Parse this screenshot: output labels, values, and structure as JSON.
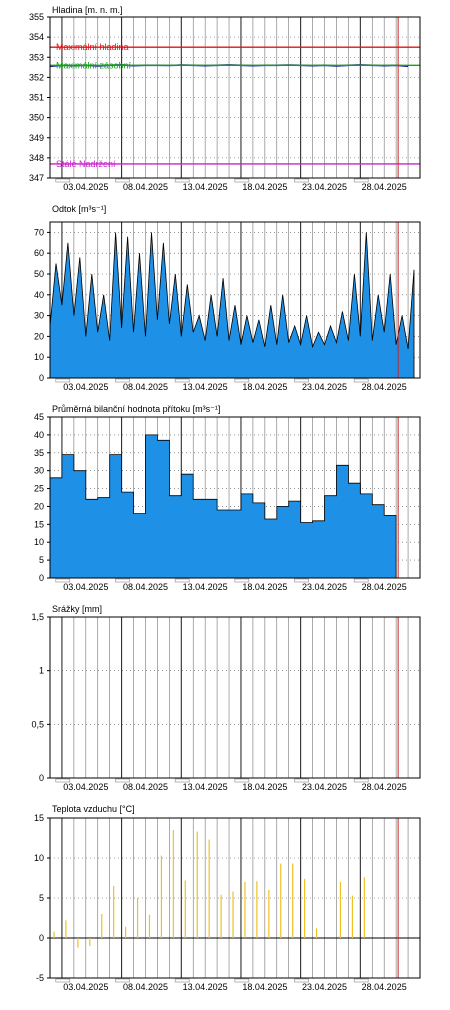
{
  "colors": {
    "frame": "#000000",
    "grid": "#000000",
    "fill_blue": "#1e90e6",
    "level_line": "#1f1f99",
    "max_level": "#e01515",
    "max_storage": "#14a014",
    "dead_storage": "#cc22cc",
    "precip": "#e0c000",
    "temp": "#f0c020",
    "today_marker": "#cc2222"
  },
  "x_axis": {
    "start": "2025-03-31",
    "end": "2025-05-01",
    "labels": [
      "03.04.2025",
      "08.04.2025",
      "13.04.2025",
      "18.04.2025",
      "23.04.2025",
      "28.04.2025"
    ],
    "label_dates": [
      "2025-04-03",
      "2025-04-08",
      "2025-04-13",
      "2025-04-18",
      "2025-04-23",
      "2025-04-28"
    ],
    "today_marker": "2025-04-29"
  },
  "chart_data": [
    {
      "id": "hladina",
      "type": "line",
      "title": "Hladina [m. n. m.]",
      "ylim": [
        347,
        355
      ],
      "yticks": [
        "347",
        "348",
        "349",
        "350",
        "351",
        "352",
        "353",
        "354",
        "355"
      ],
      "ytick_values": [
        347,
        348,
        349,
        350,
        351,
        352,
        353,
        354,
        355
      ],
      "reference_lines": [
        {
          "label": "Maximální hladina",
          "value": 353.5,
          "color_key": "max_level"
        },
        {
          "label": "Maximální zásobní",
          "value": 352.6,
          "color_key": "max_storage"
        },
        {
          "label": "Stálé Nadržení",
          "value": 347.7,
          "color_key": "dead_storage"
        }
      ],
      "series": [
        {
          "values_daily": [
            352.55,
            352.6,
            352.58,
            352.6,
            352.57,
            352.6,
            352.62,
            352.58,
            352.6,
            352.6,
            352.59,
            352.61,
            352.6,
            352.58,
            352.6,
            352.62,
            352.6,
            352.58,
            352.6,
            352.6,
            352.61,
            352.6,
            352.58,
            352.6,
            352.57,
            352.6,
            352.62,
            352.6,
            352.58,
            352.6,
            352.55
          ]
        }
      ]
    },
    {
      "id": "odtok",
      "type": "area",
      "title": "Odtok [m³s⁻¹]",
      "ylim": [
        0,
        75
      ],
      "yticks": [
        "0",
        "10",
        "20",
        "30",
        "40",
        "50",
        "60",
        "70"
      ],
      "ytick_values": [
        0,
        10,
        20,
        30,
        40,
        50,
        60,
        70
      ],
      "series": [
        {
          "x": [
            0,
            0.5,
            1,
            1.5,
            2,
            2.5,
            3,
            3.5,
            4,
            4.5,
            5,
            5.5,
            6,
            6.5,
            7,
            7.5,
            8,
            8.5,
            9,
            9.5,
            10,
            10.5,
            11,
            11.5,
            12,
            12.5,
            13,
            13.5,
            14,
            14.5,
            15,
            15.5,
            16,
            16.5,
            17,
            17.5,
            18,
            18.5,
            19,
            19.5,
            20,
            20.5,
            21,
            21.5,
            22,
            22.5,
            23,
            23.5,
            24,
            24.5,
            25,
            25.5,
            26,
            26.5,
            27,
            27.5,
            28,
            28.5,
            29,
            29.5,
            30,
            30.5
          ],
          "values": [
            25,
            55,
            35,
            65,
            30,
            58,
            20,
            50,
            22,
            40,
            18,
            70,
            24,
            68,
            22,
            60,
            20,
            70,
            28,
            65,
            26,
            50,
            20,
            45,
            22,
            30,
            18,
            40,
            20,
            48,
            18,
            35,
            16,
            30,
            17,
            28,
            15,
            35,
            16,
            40,
            17,
            25,
            16,
            30,
            15,
            22,
            16,
            25,
            17,
            32,
            18,
            50,
            20,
            70,
            18,
            40,
            22,
            50,
            16,
            30,
            14,
            52
          ]
        }
      ]
    },
    {
      "id": "pritok",
      "type": "area",
      "title": "Průměrná bilanční hodnota přítoku   [m³s⁻¹]",
      "ylim": [
        0,
        45
      ],
      "yticks": [
        "0",
        "5",
        "10",
        "15",
        "20",
        "25",
        "30",
        "35",
        "40",
        "45"
      ],
      "ytick_values": [
        0,
        5,
        10,
        15,
        20,
        25,
        30,
        35,
        40,
        45
      ],
      "series": [
        {
          "values_daily": [
            28,
            34.5,
            30,
            22,
            22.5,
            34.5,
            24,
            18,
            40,
            38.5,
            23,
            29,
            22,
            22,
            19,
            19,
            23.5,
            21,
            16.5,
            20,
            21.5,
            15.5,
            16,
            23,
            31.5,
            26.5,
            23.5,
            20.5,
            17.5
          ]
        }
      ]
    },
    {
      "id": "srazky",
      "type": "bar",
      "title": "Srážky [mm]",
      "ylim": [
        0,
        1.5
      ],
      "yticks": [
        "0",
        "0,5",
        "1",
        "1,5"
      ],
      "ytick_values": [
        0,
        0.5,
        1,
        1.5
      ],
      "series": [
        {
          "values_daily": [
            0,
            0,
            0,
            0,
            0,
            0,
            0,
            0,
            0,
            0,
            0,
            0,
            0,
            0,
            0,
            0,
            0,
            0,
            0,
            0,
            0,
            0,
            0,
            0,
            0,
            0,
            0,
            0,
            0,
            0,
            0
          ]
        }
      ]
    },
    {
      "id": "teplota",
      "type": "bar",
      "title": "Teplota vzduchu [°C]",
      "ylim": [
        -5,
        15
      ],
      "yticks": [
        "-5",
        "0",
        "5",
        "10",
        "15"
      ],
      "ytick_values": [
        -5,
        0,
        5,
        10,
        15
      ],
      "series": [
        {
          "values_daily": [
            0.8,
            2.2,
            -1.2,
            -1.0,
            3.0,
            6.5,
            1.4,
            5.0,
            2.9,
            10.3,
            13.5,
            7.2,
            13.3,
            12.3,
            5.4,
            5.8,
            7.0,
            7.1,
            6.0,
            9.3,
            9.3,
            7.4,
            1.2,
            0,
            7.0,
            5.3,
            7.6,
            0,
            0,
            0,
            0
          ],
          "values_alt": []
        }
      ]
    }
  ]
}
